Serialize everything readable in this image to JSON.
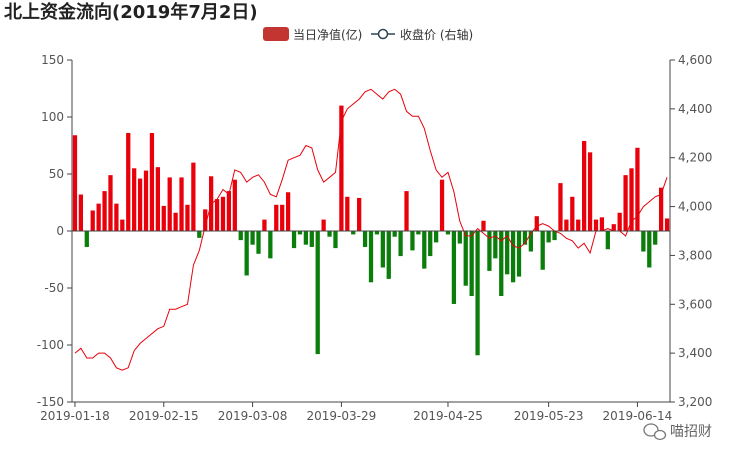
{
  "chart_data": {
    "type": "bar",
    "title": "北上资金流向(2019年7月2日)",
    "legend": {
      "placement": "top-center",
      "entries": [
        {
          "label": "当日净值(亿)",
          "kind": "bar",
          "color": "#c23531"
        },
        {
          "label": "收盘价 (右轴)",
          "kind": "line",
          "color": "#2f4554"
        }
      ]
    },
    "colors": {
      "positive": "#e8000b",
      "negative": "#0a7d0a",
      "line": "#e8000b"
    },
    "y_left": {
      "min": -150,
      "max": 150,
      "ticks": [
        150,
        100,
        50,
        0,
        -50,
        -100,
        -150
      ]
    },
    "y_right": {
      "min": 3200,
      "max": 4600,
      "tick_labels": [
        "4,600",
        "4,400",
        "4,200",
        "4,000",
        "3,800",
        "3,600",
        "3,400",
        "3,200"
      ],
      "ticks": [
        4600,
        4400,
        4200,
        4000,
        3800,
        3600,
        3400,
        3200
      ]
    },
    "x_tick_labels": [
      "2019-01-18",
      "2019-02-15",
      "2019-03-08",
      "2019-03-29",
      "2019-04-25",
      "2019-05-23",
      "2019-06-14"
    ],
    "x_tick_index": [
      0,
      15,
      30,
      45,
      63,
      80,
      95
    ],
    "net_inflow": [
      84,
      32,
      -14,
      18,
      24,
      35,
      49,
      24,
      10,
      86,
      55,
      46,
      53,
      86,
      56,
      22,
      47,
      16,
      47,
      23,
      60,
      -6,
      19,
      48,
      28,
      30,
      35,
      45,
      -8,
      -39,
      -12,
      -20,
      10,
      -24,
      23,
      23,
      34,
      -15,
      -3,
      -12,
      -14,
      -108,
      10,
      -5,
      -15,
      110,
      30,
      -3,
      29,
      -14,
      -45,
      -3,
      -32,
      -42,
      -5,
      -22,
      35,
      -17,
      -3,
      -33,
      -22,
      -10,
      45,
      -3,
      -64,
      -11,
      -48,
      -57,
      -109,
      9,
      -35,
      -24,
      -57,
      -38,
      -45,
      -40,
      -12,
      -18,
      13,
      -34,
      -10,
      -8,
      42,
      10,
      30,
      10,
      79,
      69,
      10,
      12,
      -16,
      6,
      16,
      49,
      55,
      73,
      -18,
      -32,
      -12,
      38,
      11
    ],
    "close_price": [
      3400,
      3420,
      3380,
      3380,
      3400,
      3400,
      3380,
      3340,
      3330,
      3340,
      3410,
      3440,
      3460,
      3480,
      3500,
      3510,
      3580,
      3580,
      3590,
      3600,
      3760,
      3820,
      3920,
      4010,
      4030,
      4070,
      4050,
      4150,
      4140,
      4100,
      4120,
      4130,
      4100,
      4050,
      4040,
      4110,
      4190,
      4200,
      4210,
      4250,
      4240,
      4150,
      4100,
      4120,
      4140,
      4350,
      4400,
      4420,
      4440,
      4470,
      4480,
      4460,
      4440,
      4470,
      4480,
      4460,
      4390,
      4370,
      4370,
      4320,
      4230,
      4150,
      4120,
      4140,
      4060,
      3940,
      3880,
      3880,
      3910,
      3890,
      3870,
      3880,
      3860,
      3880,
      3840,
      3830,
      3850,
      3890,
      3920,
      3930,
      3920,
      3900,
      3890,
      3870,
      3860,
      3830,
      3850,
      3810,
      3900,
      3900,
      3910,
      3900,
      3900,
      3880,
      3940,
      3960,
      4000,
      4020,
      4040,
      4050,
      4120
    ]
  },
  "watermark": {
    "text": "喵招财",
    "icon": "wechat-icon"
  }
}
